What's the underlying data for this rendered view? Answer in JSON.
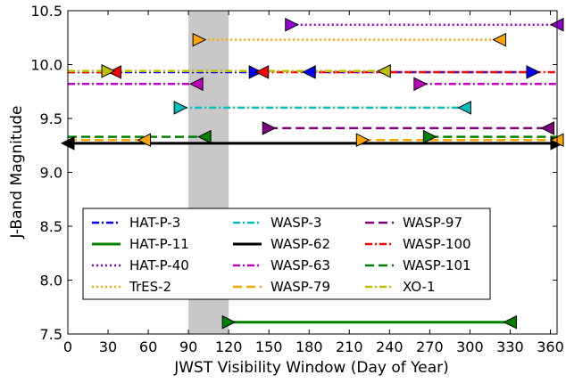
{
  "chart_data": {
    "type": "line",
    "title": "",
    "xlabel": "JWST Visibility Window (Day of Year)",
    "ylabel": "J-Band Magnitude",
    "xlim": [
      0,
      365
    ],
    "ylim": [
      7.5,
      10.5
    ],
    "xticks": [
      0,
      30,
      60,
      90,
      120,
      150,
      180,
      210,
      240,
      270,
      300,
      330,
      360
    ],
    "yticks": [
      7.5,
      8.0,
      8.5,
      9.0,
      9.5,
      10.0,
      10.5
    ],
    "shaded_band": {
      "x": [
        90,
        120
      ],
      "color": "#c8c8c8"
    },
    "legend_position": "lower-left",
    "series": [
      {
        "name": "HAT-P-3",
        "color": "#0000ff",
        "style": "dashdot",
        "j_mag": 9.93,
        "windows": [
          [
            0,
            140
          ],
          [
            180,
            347
          ]
        ],
        "markers": [
          {
            "x": 140,
            "dir": "right"
          },
          {
            "x": 180,
            "dir": "left"
          },
          {
            "x": 347,
            "dir": "right"
          }
        ]
      },
      {
        "name": "HAT-P-11",
        "color": "#008000",
        "style": "solid",
        "j_mag": 7.61,
        "windows": [
          [
            120,
            330
          ]
        ],
        "markers": [
          {
            "x": 120,
            "dir": "right"
          },
          {
            "x": 330,
            "dir": "left"
          }
        ]
      },
      {
        "name": "HAT-P-40",
        "color": "#9400d3",
        "style": "dotted",
        "j_mag": 10.37,
        "windows": [
          [
            167,
            365
          ]
        ],
        "markers": [
          {
            "x": 167,
            "dir": "right"
          },
          {
            "x": 365,
            "dir": "left"
          }
        ]
      },
      {
        "name": "TrES-2",
        "color": "#ffa500",
        "style": "dotted",
        "j_mag": 10.23,
        "windows": [
          [
            98,
            322
          ]
        ],
        "markers": [
          {
            "x": 98,
            "dir": "right"
          },
          {
            "x": 322,
            "dir": "left"
          }
        ]
      },
      {
        "name": "WASP-3",
        "color": "#00bfbf",
        "style": "dashdot",
        "j_mag": 9.6,
        "windows": [
          [
            84,
            296
          ]
        ],
        "markers": [
          {
            "x": 84,
            "dir": "right"
          },
          {
            "x": 296,
            "dir": "left"
          }
        ]
      },
      {
        "name": "WASP-62",
        "color": "#000000",
        "style": "solid",
        "j_mag": 9.27,
        "windows": [
          [
            0,
            365
          ]
        ],
        "markers": [
          {
            "x": 0,
            "dir": "left"
          },
          {
            "x": 365,
            "dir": "right"
          }
        ]
      },
      {
        "name": "WASP-63",
        "color": "#bf00bf",
        "style": "dashdot",
        "j_mag": 9.82,
        "windows": [
          [
            0,
            96
          ],
          [
            263,
            365
          ]
        ],
        "markers": [
          {
            "x": 96,
            "dir": "left"
          },
          {
            "x": 263,
            "dir": "right"
          }
        ]
      },
      {
        "name": "WASP-79",
        "color": "#ffa500",
        "style": "dashed",
        "j_mag": 9.3,
        "windows": [
          [
            0,
            57
          ],
          [
            220,
            365
          ]
        ],
        "markers": [
          {
            "x": 57,
            "dir": "left"
          },
          {
            "x": 220,
            "dir": "right"
          },
          {
            "x": 365,
            "dir": "left"
          }
        ]
      },
      {
        "name": "WASP-97",
        "color": "#800080",
        "style": "dashed",
        "j_mag": 9.41,
        "windows": [
          [
            150,
            358
          ]
        ],
        "markers": [
          {
            "x": 150,
            "dir": "right"
          },
          {
            "x": 358,
            "dir": "left"
          }
        ]
      },
      {
        "name": "WASP-100",
        "color": "#ff0000",
        "style": "dashdot",
        "j_mag": 9.93,
        "windows": [
          [
            0,
            35
          ],
          [
            145,
            365
          ]
        ],
        "markers": [
          {
            "x": 35,
            "dir": "left"
          },
          {
            "x": 145,
            "dir": "left"
          }
        ]
      },
      {
        "name": "WASP-101",
        "color": "#008000",
        "style": "dashed",
        "j_mag": 9.33,
        "windows": [
          [
            0,
            102
          ],
          [
            270,
            365
          ]
        ],
        "markers": [
          {
            "x": 102,
            "dir": "left"
          },
          {
            "x": 270,
            "dir": "right"
          }
        ]
      },
      {
        "name": "XO-1",
        "color": "#bfbf00",
        "style": "dashdot",
        "j_mag": 9.94,
        "windows": [
          [
            0,
            236
          ]
        ],
        "markers": [
          {
            "x": 30,
            "dir": "right"
          },
          {
            "x": 236,
            "dir": "left"
          }
        ]
      }
    ]
  }
}
